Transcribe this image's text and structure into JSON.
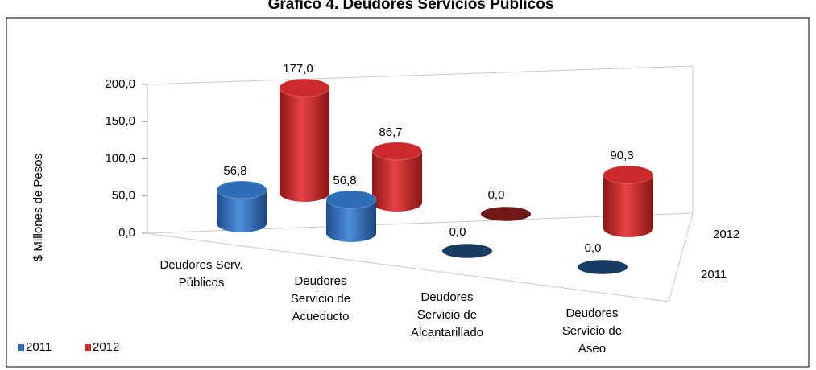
{
  "chart_data": {
    "type": "bar3d",
    "title": "Gráfico 4. Deudores Servicios Públicos",
    "y_label": "$ Millones de Pesos",
    "categories": [
      [
        "Deudores Serv.",
        "Públicos"
      ],
      [
        "Deudores",
        "Servicio de",
        "Acueducto"
      ],
      [
        "Deudores",
        "Servicio de",
        "Alcantarillado"
      ],
      [
        "Deudores",
        "Servicio de",
        "Aseo"
      ]
    ],
    "series": [
      {
        "name": "2011",
        "color": "#2e6db8",
        "values": [
          56.8,
          56.8,
          0,
          0
        ],
        "value_labels": [
          "56,8",
          "56,8",
          "0,0",
          "0,0"
        ]
      },
      {
        "name": "2012",
        "color": "#cc2a2a",
        "values": [
          177,
          86.7,
          0,
          90.3
        ],
        "value_labels": [
          "177,0",
          "86,7",
          "0,0",
          "90,3"
        ]
      }
    ],
    "ylim": [
      0,
      200
    ],
    "yticks": [
      {
        "value": 0,
        "label": "0,0"
      },
      {
        "value": 50,
        "label": "50,0"
      },
      {
        "value": 100,
        "label": "100,0"
      },
      {
        "value": 150,
        "label": "150,0"
      },
      {
        "value": 200,
        "label": "200,0"
      }
    ],
    "legend": "bottom-left"
  }
}
